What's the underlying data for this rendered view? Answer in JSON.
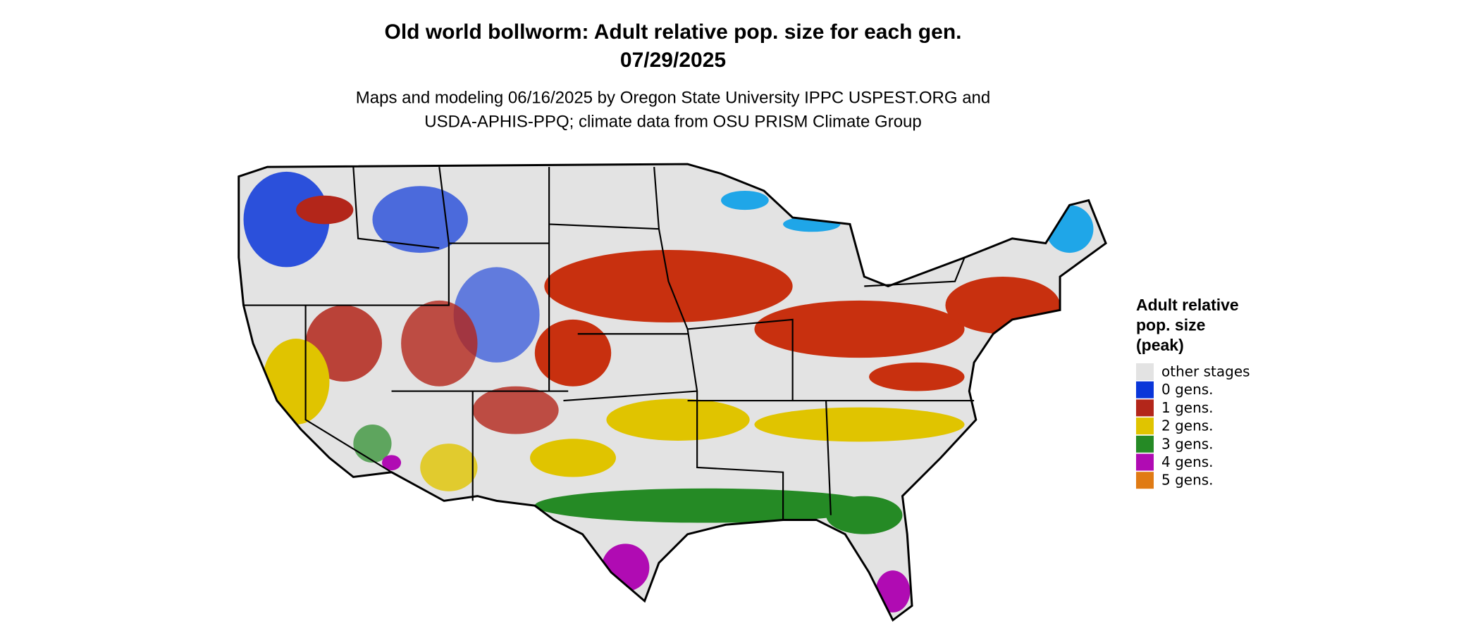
{
  "header": {
    "title": [
      "Old world bollworm: Adult relative pop. size for each gen.",
      "07/29/2025"
    ],
    "subtitle": [
      "Maps and modeling 06/16/2025 by Oregon State University IPPC USPEST.ORG and",
      "USDA-APHIS-PPQ; climate data from OSU PRISM Climate Group"
    ]
  },
  "legend": {
    "title": [
      "Adult relative",
      "pop. size",
      "(peak)"
    ],
    "items": [
      {
        "label": "other stages",
        "color": "#e3e3e3"
      },
      {
        "label": "0 gens.",
        "color": "#0a36d9"
      },
      {
        "label": "1 gens.",
        "color": "#b3261a"
      },
      {
        "label": "2 gens.",
        "color": "#e0c400"
      },
      {
        "label": "3 gens.",
        "color": "#258a25"
      },
      {
        "label": "4 gens.",
        "color": "#b00bb3"
      },
      {
        "label": "5 gens.",
        "color": "#e07b14"
      }
    ]
  }
}
